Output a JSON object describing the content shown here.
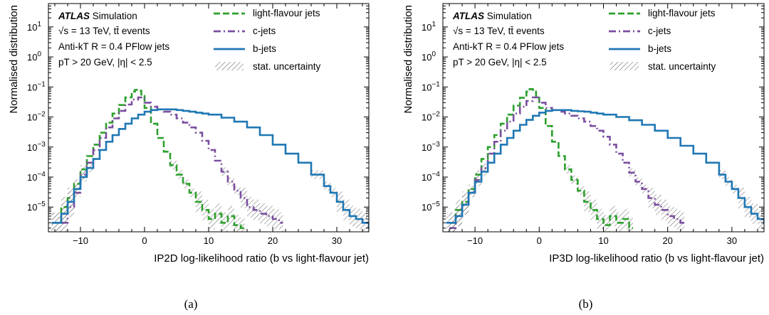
{
  "chart_data": [
    {
      "type": "line",
      "subtype": "step-histogram",
      "caption": "(a)",
      "xlabel": "IP2D log-likelihood ratio (b vs light-flavour jet)",
      "ylabel": "Normalised distribution",
      "xlim": [
        -15,
        35
      ],
      "ylim": [
        1.5e-06,
        60
      ],
      "yscale": "log",
      "x_ticks": [
        -10,
        0,
        10,
        20,
        30
      ],
      "y_ticks": [
        "10^-5",
        "10^-4",
        "10^-3",
        "10^-2",
        "10^-1",
        "10^0",
        "10^1"
      ],
      "grid": false,
      "legend_position": "top-right",
      "annotation": [
        "ATLAS Simulation",
        "√s = 13 TeV, tt̄ events",
        "Anti-kT R = 0.4 PFlow jets",
        "pT > 20 GeV, |η| < 2.5"
      ],
      "uncertainty_label": "stat. uncertainty",
      "series": [
        {
          "name": "light-flavour jets",
          "color": "#2ca02c",
          "dash": "dashed",
          "x": [
            -14.5,
            -13,
            -12,
            -11,
            -10,
            -9,
            -8,
            -7,
            -6,
            -5,
            -4,
            -3,
            -2,
            -1.5,
            -1,
            -0.5,
            0,
            1,
            2,
            3,
            4,
            5,
            6,
            7,
            8,
            9,
            10,
            11,
            12,
            13,
            14,
            15
          ],
          "y": [
            3e-06,
            1e-05,
            2e-05,
            6e-05,
            0.00018,
            0.0005,
            0.0012,
            0.003,
            0.0065,
            0.013,
            0.025,
            0.045,
            0.07,
            0.08,
            0.075,
            0.05,
            0.02,
            0.006,
            0.002,
            0.0007,
            0.00025,
            0.00012,
            6e-05,
            3e-05,
            1.5e-05,
            8e-06,
            4e-06,
            6e-06,
            3e-06,
            5e-06,
            2.5e-06,
            2e-06
          ]
        },
        {
          "name": "c-jets",
          "color": "#7b4fa0",
          "dash": "dashdot",
          "x": [
            -13,
            -12,
            -11,
            -10,
            -9,
            -8,
            -7,
            -6,
            -5,
            -4,
            -3,
            -2,
            -1,
            0,
            1,
            2,
            3,
            4,
            5,
            6,
            7,
            8,
            9,
            10,
            11,
            12,
            13,
            14,
            15,
            16,
            17,
            18,
            19,
            20,
            21
          ],
          "y": [
            3e-06,
            1e-05,
            3e-05,
            0.00012,
            0.0003,
            0.0008,
            0.002,
            0.0045,
            0.009,
            0.016,
            0.026,
            0.038,
            0.045,
            0.03,
            0.022,
            0.018,
            0.015,
            0.012,
            0.009,
            0.0065,
            0.0045,
            0.003,
            0.0016,
            0.0008,
            0.00035,
            0.00015,
            7e-05,
            3.5e-05,
            2e-05,
            1e-05,
            8e-06,
            6e-06,
            5e-06,
            4e-06,
            3e-06
          ]
        },
        {
          "name": "b-jets",
          "color": "#1f77b4",
          "dash": "solid",
          "x": [
            -14.5,
            -13,
            -12,
            -11,
            -10,
            -9,
            -8,
            -7,
            -6,
            -5,
            -4,
            -3,
            -2,
            -1,
            0,
            1,
            2,
            3,
            4,
            5,
            6,
            7,
            8,
            9,
            10,
            12,
            14,
            16,
            18,
            20,
            22,
            24,
            26,
            28,
            29,
            30,
            31,
            32,
            33,
            34,
            35
          ],
          "y": [
            3e-06,
            6e-06,
            1.5e-05,
            4e-05,
            0.0001,
            0.0002,
            0.0004,
            0.0008,
            0.0015,
            0.0025,
            0.004,
            0.006,
            0.009,
            0.012,
            0.015,
            0.017,
            0.018,
            0.018,
            0.018,
            0.017,
            0.016,
            0.015,
            0.014,
            0.013,
            0.012,
            0.0095,
            0.007,
            0.0045,
            0.0025,
            0.0012,
            0.0006,
            0.0003,
            0.00012,
            5e-05,
            3e-05,
            1.5e-05,
            8e-06,
            5e-06,
            4e-06,
            3e-06,
            2e-06
          ]
        }
      ]
    },
    {
      "type": "line",
      "subtype": "step-histogram",
      "caption": "(b)",
      "xlabel": "IP3D log-likelihood ratio (b vs light-flavour jet)",
      "ylabel": "Normalised distribution",
      "xlim": [
        -15,
        35
      ],
      "ylim": [
        1.5e-06,
        60
      ],
      "yscale": "log",
      "x_ticks": [
        -10,
        0,
        10,
        20,
        30
      ],
      "y_ticks": [
        "10^-5",
        "10^-4",
        "10^-3",
        "10^-2",
        "10^-1",
        "10^0",
        "10^1"
      ],
      "grid": false,
      "legend_position": "top-right",
      "annotation": [
        "ATLAS Simulation",
        "√s = 13 TeV, tt̄ events",
        "Anti-kT R = 0.4 PFlow jets",
        "pT > 20 GeV, |η| < 2.5"
      ],
      "uncertainty_label": "stat. uncertainty",
      "series": [
        {
          "name": "light-flavour jets",
          "color": "#2ca02c",
          "dash": "dashed",
          "x": [
            -14,
            -13,
            -12,
            -11,
            -10,
            -9,
            -8,
            -7,
            -6,
            -5,
            -4,
            -3,
            -2,
            -1.5,
            -1,
            -0.5,
            0,
            1,
            2,
            3,
            4,
            5,
            6,
            7,
            8,
            9,
            10,
            11,
            12,
            13,
            14
          ],
          "y": [
            3e-06,
            8e-06,
            1.5e-05,
            4e-05,
            0.00012,
            0.0004,
            0.001,
            0.0025,
            0.006,
            0.012,
            0.024,
            0.044,
            0.07,
            0.085,
            0.08,
            0.05,
            0.02,
            0.005,
            0.0015,
            0.0005,
            0.00018,
            8e-05,
            3.5e-05,
            1.5e-05,
            8e-06,
            4e-06,
            2.5e-06,
            5e-06,
            3e-06,
            4e-06,
            2e-06
          ]
        },
        {
          "name": "c-jets",
          "color": "#7b4fa0",
          "dash": "dashdot",
          "x": [
            -14,
            -13,
            -12,
            -11,
            -10,
            -9,
            -8,
            -7,
            -6,
            -5,
            -4,
            -3,
            -2,
            -1,
            0,
            1,
            2,
            3,
            4,
            5,
            6,
            7,
            8,
            9,
            10,
            11,
            12,
            13,
            14,
            15,
            16,
            17,
            18,
            19,
            20,
            21,
            22
          ],
          "y": [
            2e-06,
            5e-06,
            1.2e-05,
            3e-05,
            8e-05,
            0.0002,
            0.0006,
            0.0015,
            0.0035,
            0.007,
            0.013,
            0.022,
            0.034,
            0.045,
            0.03,
            0.02,
            0.017,
            0.015,
            0.013,
            0.011,
            0.009,
            0.007,
            0.005,
            0.0035,
            0.0022,
            0.0012,
            0.0006,
            0.0003,
            0.00014,
            7e-05,
            4e-05,
            2e-05,
            1.2e-05,
            8e-06,
            5e-06,
            4e-06,
            3e-06
          ]
        },
        {
          "name": "b-jets",
          "color": "#1f77b4",
          "dash": "solid",
          "x": [
            -14.5,
            -13,
            -12,
            -11,
            -10,
            -9,
            -8,
            -7,
            -6,
            -5,
            -4,
            -3,
            -2,
            -1,
            0,
            1,
            2,
            3,
            4,
            5,
            6,
            7,
            8,
            9,
            10,
            12,
            14,
            16,
            18,
            20,
            22,
            24,
            26,
            28,
            29,
            30,
            31,
            32,
            33,
            34,
            35
          ],
          "y": [
            3e-06,
            5e-06,
            1.2e-05,
            3e-05,
            7e-05,
            0.00015,
            0.0003,
            0.0006,
            0.0012,
            0.002,
            0.0035,
            0.0055,
            0.008,
            0.011,
            0.014,
            0.016,
            0.017,
            0.017,
            0.017,
            0.016,
            0.0155,
            0.015,
            0.014,
            0.013,
            0.012,
            0.01,
            0.0078,
            0.0055,
            0.0035,
            0.002,
            0.0011,
            0.0006,
            0.0003,
            0.00012,
            7e-05,
            4e-05,
            2e-05,
            1e-05,
            6e-06,
            4e-06,
            3e-06
          ]
        }
      ]
    }
  ]
}
